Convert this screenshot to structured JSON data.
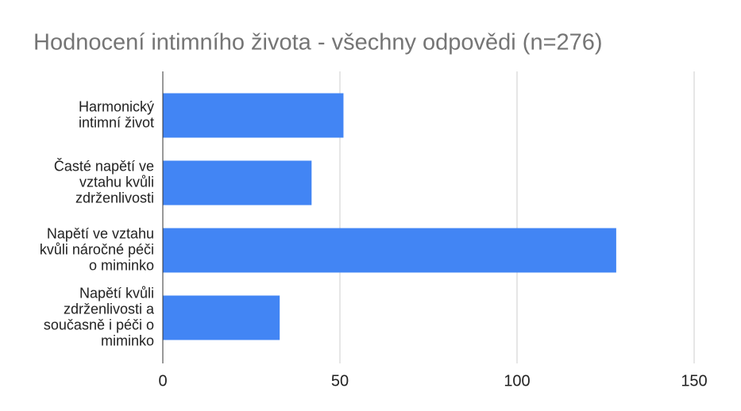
{
  "chart_data": {
    "type": "bar",
    "orientation": "horizontal",
    "title": "Hodnocení intimního života - všechny odpovědi (n=276)",
    "categories": [
      "Harmonický\nintimní život",
      "Časté napětí ve\nvztahu kvůli\nzdrženlivosti",
      "Napětí ve vztahu\nkvůli náročné péči\no miminko",
      "Napětí kvůli\nzdrženlivosti a\nsoučasně i péči o\nmiminko"
    ],
    "values": [
      51,
      42,
      128,
      33
    ],
    "color": "#4285f4",
    "xlim": [
      0,
      150
    ],
    "xticks": [
      0,
      50,
      100,
      150
    ],
    "grid": true
  }
}
